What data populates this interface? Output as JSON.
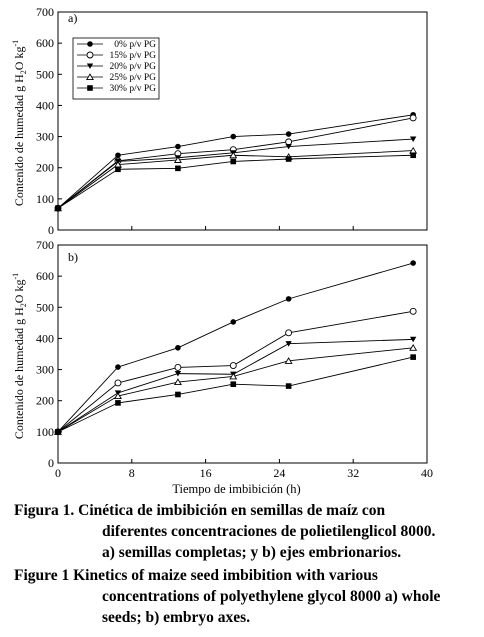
{
  "chart_data": [
    {
      "type": "line",
      "panel_label": "a)",
      "ylabel": "Contenido de humedad g H2O kg-1",
      "xlabel": "",
      "xlim": [
        0,
        40
      ],
      "ylim": [
        0,
        700
      ],
      "x_ticks": [
        0,
        8,
        16,
        24,
        32,
        40
      ],
      "y_ticks": [
        0,
        100,
        200,
        300,
        400,
        500,
        600,
        700
      ],
      "legend": "top-left",
      "x": [
        0,
        6.5,
        13,
        19,
        25,
        38.5
      ],
      "series": [
        {
          "name": "0% p/v PG",
          "marker": "filled-diamond",
          "values": [
            70,
            240,
            268,
            300,
            308,
            370
          ]
        },
        {
          "name": "15% p/v PG",
          "marker": "open-circle",
          "values": [
            70,
            222,
            245,
            258,
            283,
            360
          ]
        },
        {
          "name": "20% p/v PG",
          "marker": "filled-triangle-down",
          "values": [
            70,
            220,
            232,
            248,
            268,
            292
          ]
        },
        {
          "name": "25% p/v PG",
          "marker": "open-triangle-up",
          "values": [
            70,
            210,
            225,
            240,
            235,
            255
          ]
        },
        {
          "name": "30% p/v PG",
          "marker": "filled-square",
          "values": [
            70,
            195,
            198,
            220,
            228,
            240
          ]
        }
      ]
    },
    {
      "type": "line",
      "panel_label": "b)",
      "ylabel": "Contenido de humedad g H2O kg-1",
      "xlabel": "Tiempo de imbibición (h)",
      "xlim": [
        0,
        40
      ],
      "ylim": [
        0,
        700
      ],
      "x_ticks": [
        0,
        8,
        16,
        24,
        32,
        40
      ],
      "y_ticks": [
        0,
        100,
        200,
        300,
        400,
        500,
        600,
        700
      ],
      "x": [
        0,
        6.5,
        13,
        19,
        25,
        38.5
      ],
      "series": [
        {
          "name": "0% p/v PG",
          "marker": "filled-diamond",
          "values": [
            100,
            308,
            370,
            453,
            527,
            642
          ]
        },
        {
          "name": "15% p/v PG",
          "marker": "open-circle",
          "values": [
            100,
            257,
            307,
            313,
            418,
            487
          ]
        },
        {
          "name": "20% p/v PG",
          "marker": "filled-triangle-down",
          "values": [
            100,
            225,
            287,
            285,
            383,
            397
          ]
        },
        {
          "name": "25% p/v PG",
          "marker": "open-triangle-up",
          "values": [
            100,
            215,
            260,
            278,
            328,
            370
          ]
        },
        {
          "name": "30% p/v PG",
          "marker": "filled-square",
          "values": [
            100,
            193,
            220,
            253,
            247,
            340
          ]
        }
      ]
    }
  ],
  "caption_es": {
    "lead": "Figura 1.",
    "line1": "Cinética de imbibición en semillas de maíz con",
    "line2": "diferentes concentraciones de polietilenglicol 8000.",
    "line3": "a) semillas completas; y b) ejes embrionarios."
  },
  "caption_en": {
    "lead": "Figure 1",
    "line1": "Kinetics of maize seed imbibition with various",
    "line2": "concentrations of polyethylene glycol 8000 a) whole",
    "line3": "seeds; b) embryo axes."
  },
  "colors": {
    "ink": "#000000",
    "background": "#ffffff"
  }
}
